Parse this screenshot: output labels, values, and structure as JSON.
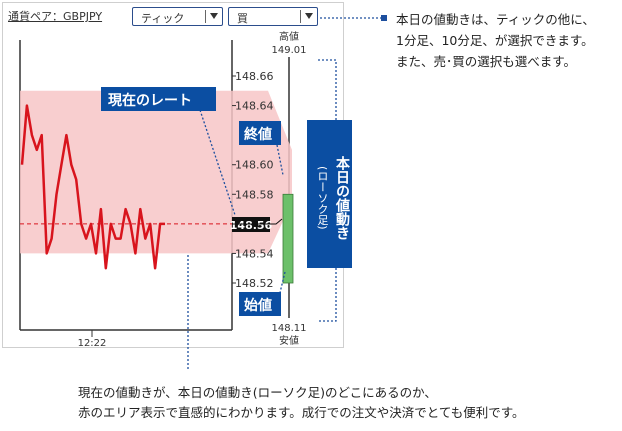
{
  "header": {
    "pair_label": "通貨ペア：GBPJPY",
    "interval_select": "ティック",
    "side_select": "買"
  },
  "chart_data": {
    "type": "line",
    "series": [
      {
        "values": [
          148.6,
          148.64,
          148.62,
          148.61,
          148.62,
          148.54,
          148.55,
          148.58,
          148.6,
          148.62,
          148.6,
          148.59,
          148.56,
          148.55,
          148.56,
          148.54,
          148.57,
          148.53,
          148.56,
          148.55,
          148.55,
          148.57,
          148.56,
          148.54,
          148.57,
          148.55,
          148.56,
          148.53,
          148.56,
          148.56
        ]
      }
    ],
    "ylim": [
      148.5,
      148.7
    ],
    "yticks": [
      "148.66",
      "148.64",
      "148.60",
      "148.58",
      "148.54",
      "148.52"
    ],
    "xticks": [
      "12:22"
    ],
    "current_rate": "148.56",
    "range_low": 148.54,
    "range_high": 148.65,
    "candle": {
      "open": 148.52,
      "close": 148.58,
      "high": 149.01,
      "low": 148.11
    },
    "high_label": "高値",
    "high_value": "149.01",
    "low_label": "安値",
    "low_value": "148.11"
  },
  "callouts": {
    "current_rate": "現在のレート",
    "close": "終値",
    "open": "始値",
    "daily_move_main": "本日の値動き",
    "daily_move_sub": "(ローソク足)"
  },
  "notes": {
    "top_right": [
      "本日の値動きは、ティックの他に、",
      "1分足、10分足、が選択できます。",
      "また、売･買の選択も選べます。"
    ],
    "bottom": [
      "現在の値動きが、本日の値動き(ローソク足)のどこにあるのか、",
      "赤のエリア表示で直感的にわかります。成行での注文や決済でとても便利です。"
    ]
  },
  "colors": {
    "accent": "#0b4ea2",
    "rate_line": "#d8141d",
    "range_area": "#f7c6c7",
    "candle": "#6cc06a"
  }
}
